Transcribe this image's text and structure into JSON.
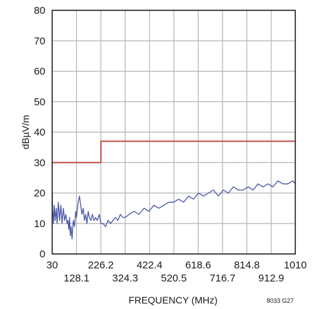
{
  "chart_data": {
    "type": "line",
    "title": "",
    "xlabel": "FREQUENCY (MHz)",
    "ylabel": "dBµV/m",
    "figure_note": "8033 G27",
    "xlim": [
      30,
      1010
    ],
    "ylim": [
      0,
      80
    ],
    "x_ticks": [
      30,
      128.1,
      226.2,
      324.3,
      422.4,
      520.5,
      618.6,
      716.7,
      814.8,
      912.9,
      1010
    ],
    "x_tick_labels": [
      "30",
      "128.1",
      "226.2",
      "324.3",
      "422.4",
      "520.5",
      "618.6",
      "716.7",
      "814.8",
      "912.9",
      "1010"
    ],
    "y_ticks": [
      0,
      10,
      20,
      30,
      40,
      50,
      60,
      70,
      80
    ],
    "y_tick_labels": [
      "0",
      "10",
      "20",
      "30",
      "40",
      "50",
      "60",
      "70",
      "80"
    ],
    "grid": true,
    "series": [
      {
        "color": "#c0504d",
        "x": [
          30,
          226.2,
          226.2,
          1010
        ],
        "y": [
          30,
          30,
          37,
          37
        ]
      },
      {
        "color": "#4a56a6",
        "x": [
          30,
          32,
          35,
          38,
          42,
          46,
          50,
          55,
          60,
          65,
          70,
          75,
          80,
          85,
          90,
          93,
          97,
          100,
          103,
          106,
          110,
          115,
          120,
          125,
          128,
          132,
          135,
          140,
          145,
          150,
          155,
          160,
          165,
          170,
          175,
          180,
          186,
          192,
          198,
          205,
          212,
          220,
          226,
          235,
          245,
          255,
          265,
          275,
          285,
          295,
          305,
          315,
          325,
          340,
          360,
          380,
          400,
          420,
          440,
          460,
          480,
          500,
          520,
          540,
          560,
          580,
          600,
          620,
          640,
          660,
          680,
          700,
          720,
          740,
          760,
          780,
          800,
          820,
          840,
          860,
          880,
          900,
          920,
          940,
          960,
          980,
          1000,
          1010
        ],
        "y": [
          20,
          14,
          10,
          16,
          11,
          15,
          10,
          17,
          11,
          16,
          10,
          15,
          11,
          13,
          10,
          11,
          8,
          12,
          6,
          9,
          5,
          11,
          9,
          14,
          12,
          15,
          17,
          19,
          16,
          13,
          15,
          11,
          13,
          10,
          14,
          12,
          11,
          13,
          11,
          12,
          11,
          13,
          10,
          10,
          9,
          11,
          10,
          11,
          12,
          11,
          13,
          12,
          12,
          13,
          14,
          13,
          15,
          14,
          16,
          15,
          16,
          17,
          17,
          18,
          17,
          19,
          18,
          20,
          19,
          20,
          21,
          19,
          21,
          20,
          22,
          21,
          21,
          22,
          21,
          23,
          22,
          23,
          22,
          24,
          23,
          23,
          24,
          23
        ]
      }
    ]
  }
}
